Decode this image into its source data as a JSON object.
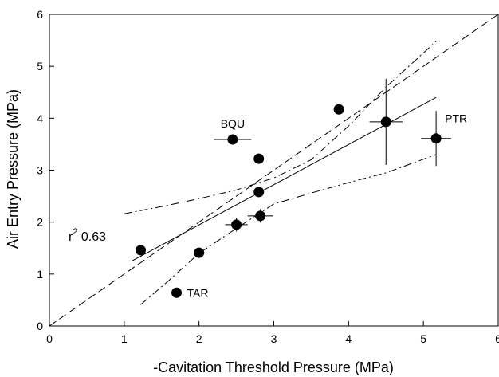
{
  "chart_data": {
    "type": "scatter",
    "title": "",
    "xlabel": "-Cavitation Threshold Pressure (MPa)",
    "ylabel": "Air Entry Pressure (MPa)",
    "xlim": [
      0,
      6
    ],
    "ylim": [
      0,
      6
    ],
    "xticks": [
      "0",
      "1",
      "2",
      "3",
      "4",
      "5",
      "6"
    ],
    "yticks": [
      "0",
      "1",
      "2",
      "3",
      "4",
      "5",
      "6"
    ],
    "grid": false,
    "points": [
      {
        "x": 1.22,
        "y": 1.46,
        "label": "",
        "x_err": 0.0,
        "y_err": 0.0
      },
      {
        "x": 1.7,
        "y": 0.64,
        "label": "TAR",
        "x_err": 0.0,
        "y_err": 0.0
      },
      {
        "x": 2.0,
        "y": 1.41,
        "label": "",
        "x_err": 0.0,
        "y_err": 0.0
      },
      {
        "x": 2.45,
        "y": 3.59,
        "label": "BQU",
        "x_err": 0.25,
        "y_err": 0.0
      },
      {
        "x": 2.5,
        "y": 1.95,
        "label": "",
        "x_err": 0.15,
        "y_err": 0.13
      },
      {
        "x": 2.8,
        "y": 3.22,
        "label": "",
        "x_err": 0.0,
        "y_err": 0.0
      },
      {
        "x": 2.8,
        "y": 2.58,
        "label": "",
        "x_err": 0.0,
        "y_err": 0.0
      },
      {
        "x": 2.82,
        "y": 2.12,
        "label": "",
        "x_err": 0.17,
        "y_err": 0.13
      },
      {
        "x": 3.87,
        "y": 4.17,
        "label": "",
        "x_err": 0.0,
        "y_err": 0.0
      },
      {
        "x": 4.5,
        "y": 3.93,
        "label": "",
        "x_err": 0.22,
        "y_err": 0.83
      },
      {
        "x": 5.17,
        "y": 3.61,
        "label": "PTR",
        "x_err": 0.2,
        "y_err": 0.53
      }
    ],
    "regression_line": {
      "x": [
        1.1,
        5.17
      ],
      "y": [
        1.25,
        4.4
      ]
    },
    "identity_line": {
      "x": [
        0,
        6
      ],
      "y": [
        0,
        6
      ]
    },
    "confidence_band_lower": {
      "x": [
        1.0,
        1.5,
        2.0,
        2.5,
        3.0,
        3.5,
        4.0,
        4.5,
        5.17
      ],
      "y": [
        2.16,
        2.3,
        2.45,
        2.62,
        2.85,
        3.2,
        3.85,
        4.6,
        5.48
      ]
    },
    "confidence_band_upper": {
      "x": [
        1.22,
        1.6,
        2.0,
        2.5,
        3.0,
        3.5,
        4.0,
        4.5,
        5.17
      ],
      "y": [
        0.41,
        0.88,
        1.4,
        1.88,
        2.35,
        2.56,
        2.76,
        2.95,
        3.3
      ]
    },
    "annotation": {
      "prefix": "r",
      "sup": "2",
      "value": " 0.63"
    },
    "legend": "none"
  }
}
